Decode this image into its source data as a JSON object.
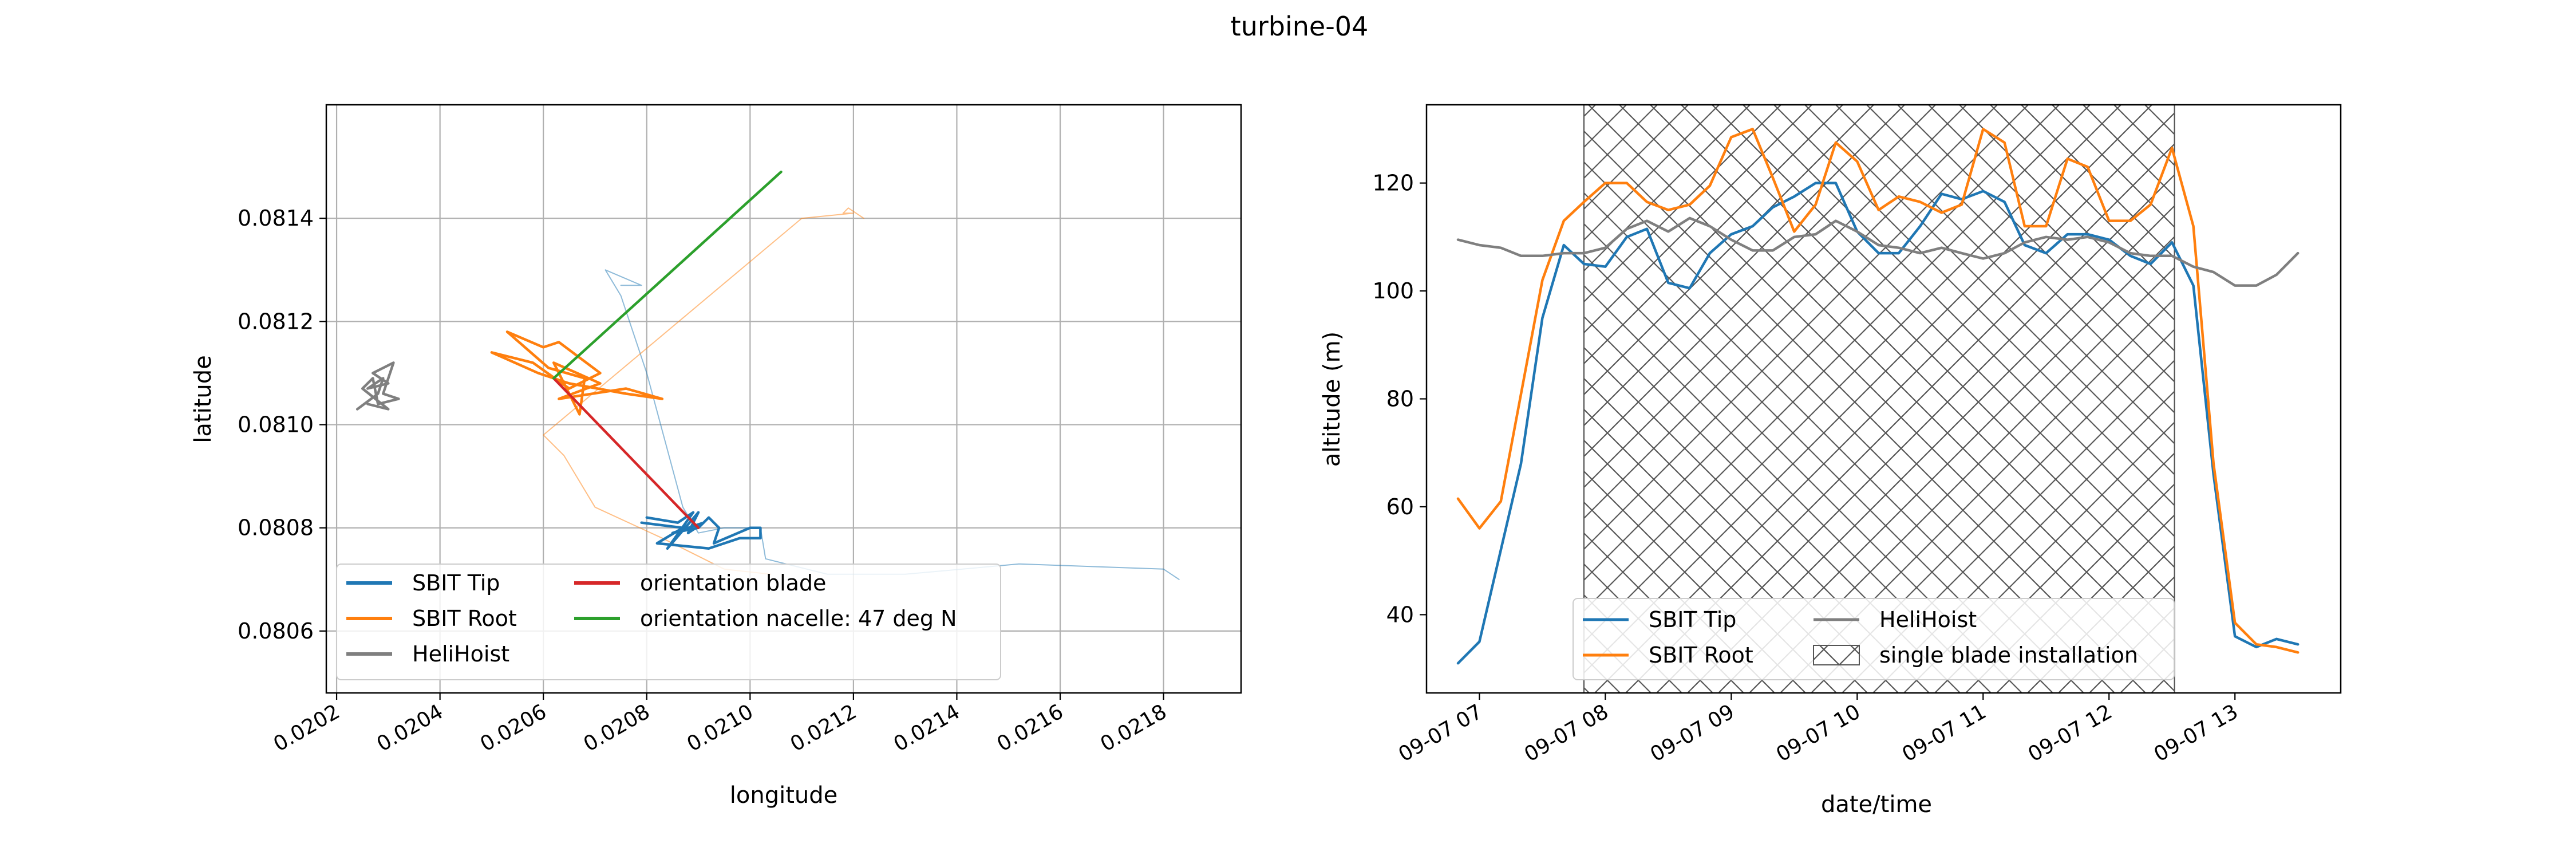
{
  "figure": {
    "suptitle": "turbine-04"
  },
  "colors": {
    "tip": "#1f77b4",
    "root": "#ff7f0e",
    "hoist": "#7f7f7f",
    "blade": "#d62728",
    "nacelle": "#2ca02c",
    "grid": "#b0b0b0"
  },
  "chart_data": [
    {
      "type": "line",
      "title": "",
      "xlabel": "longitude",
      "ylabel": "latitude",
      "xlim": [
        0.02018,
        0.02195
      ],
      "ylim": [
        0.08048,
        0.08162
      ],
      "xticks": [
        0.0202,
        0.0204,
        0.0206,
        0.0208,
        0.021,
        0.0212,
        0.0214,
        0.0216,
        0.0218
      ],
      "xtick_labels": [
        "0.0202",
        "0.0204",
        "0.0206",
        "0.0208",
        "0.0210",
        "0.0212",
        "0.0214",
        "0.0216",
        "0.0218"
      ],
      "yticks": [
        0.0806,
        0.0808,
        0.081,
        0.0812,
        0.0814
      ],
      "ytick_labels": [
        "0.0806",
        "0.0808",
        "0.0810",
        "0.0812",
        "0.0814"
      ],
      "grid": true,
      "legend_position": "lower-left",
      "legend": [
        {
          "label": "SBIT Tip",
          "key": "tip"
        },
        {
          "label": "SBIT Root",
          "key": "root"
        },
        {
          "label": "HeliHoist",
          "key": "hoist"
        },
        {
          "label": "orientation blade",
          "key": "blade"
        },
        {
          "label": "orientation nacelle: 47 deg N",
          "key": "nacelle"
        }
      ],
      "series": [
        {
          "key": "tip_light",
          "color": "tip",
          "alpha": 0.5,
          "width": 2,
          "x": [
            0.02183,
            0.0218,
            0.02152,
            0.0213,
            0.02115,
            0.02103,
            0.02102,
            0.02095,
            0.0209,
            0.02087,
            0.0208,
            0.02075,
            0.02072,
            0.02079,
            0.02075
          ],
          "y": [
            0.0807,
            0.08072,
            0.08073,
            0.08071,
            0.08071,
            0.08074,
            0.0808,
            0.0808,
            0.08079,
            0.08084,
            0.0811,
            0.08125,
            0.0813,
            0.08127,
            0.08127
          ]
        },
        {
          "key": "root_light",
          "color": "root",
          "alpha": 0.5,
          "width": 2,
          "x": [
            0.02122,
            0.02119,
            0.02118,
            0.0212,
            0.0211,
            0.0206,
            0.02064,
            0.0207,
            0.02083,
            0.02095,
            0.02104
          ],
          "y": [
            0.0814,
            0.08142,
            0.08141,
            0.08141,
            0.0814,
            0.08098,
            0.08094,
            0.08084,
            0.08078,
            0.08072,
            0.08071
          ]
        },
        {
          "key": "tip_bold",
          "color": "tip",
          "alpha": 1,
          "width": 4.5,
          "x": [
            0.0208,
            0.02086,
            0.02089,
            0.02084,
            0.0209,
            0.02088,
            0.02091,
            0.02085,
            0.0209,
            0.02092,
            0.02094,
            0.02093,
            0.021,
            0.02102,
            0.02102,
            0.02098,
            0.02092,
            0.02082,
            0.02087,
            0.02079
          ],
          "y": [
            0.08082,
            0.08081,
            0.08083,
            0.08076,
            0.08083,
            0.08079,
            0.08081,
            0.08079,
            0.0808,
            0.08082,
            0.0808,
            0.08077,
            0.0808,
            0.0808,
            0.08078,
            0.08078,
            0.08076,
            0.08077,
            0.0808,
            0.08081
          ]
        },
        {
          "key": "root_bold",
          "color": "root",
          "alpha": 1,
          "width": 4.5,
          "x": [
            0.0205,
            0.02058,
            0.02065,
            0.02071,
            0.02063,
            0.0206,
            0.02053,
            0.02061,
            0.02068,
            0.02067,
            0.02062,
            0.02071,
            0.02063,
            0.02076,
            0.02083,
            0.02076,
            0.02065,
            0.02059,
            0.0205
          ],
          "y": [
            0.08114,
            0.08112,
            0.08107,
            0.0811,
            0.08116,
            0.08115,
            0.08118,
            0.08111,
            0.08109,
            0.08102,
            0.08112,
            0.08108,
            0.08105,
            0.08107,
            0.08105,
            0.08106,
            0.08108,
            0.0811,
            0.08114
          ]
        },
        {
          "key": "hoist",
          "color": "hoist",
          "alpha": 1,
          "width": 4.5,
          "x": [
            0.02024,
            0.02028,
            0.02029,
            0.02026,
            0.0203,
            0.02027,
            0.02031,
            0.02029,
            0.02032,
            0.02028,
            0.02027,
            0.02025,
            0.0203,
            0.02026
          ],
          "y": [
            0.08103,
            0.08106,
            0.08109,
            0.08107,
            0.08108,
            0.0811,
            0.08112,
            0.08106,
            0.08105,
            0.08104,
            0.08109,
            0.08107,
            0.08103,
            0.08104
          ],
          "hidden_in_output": false
        },
        {
          "key": "blade",
          "color": "blade",
          "alpha": 1,
          "width": 4.5,
          "x": [
            0.02062,
            0.0209
          ],
          "y": [
            0.08109,
            0.0808
          ]
        },
        {
          "key": "nacelle",
          "color": "nacelle",
          "alpha": 1,
          "width": 4.5,
          "x": [
            0.02062,
            0.02106
          ],
          "y": [
            0.08109,
            0.08149
          ]
        }
      ]
    },
    {
      "type": "line",
      "title": "",
      "xlabel": "date/time",
      "ylabel": "altitude (m)",
      "x_units": "hours since 09-07 00:00",
      "xlim": [
        6.58,
        13.84
      ],
      "ylim": [
        25.5,
        134.5
      ],
      "xticks": [
        7,
        8,
        9,
        10,
        11,
        12,
        13
      ],
      "xtick_labels": [
        "09-07 07",
        "09-07 08",
        "09-07 09",
        "09-07 10",
        "09-07 11",
        "09-07 12",
        "09-07 13"
      ],
      "yticks": [
        40,
        60,
        80,
        100,
        120
      ],
      "ytick_labels": [
        "40",
        "60",
        "80",
        "100",
        "120"
      ],
      "grid": false,
      "legend_position": "lower-center",
      "legend": [
        {
          "label": "SBIT Tip",
          "key": "tip"
        },
        {
          "label": "SBIT Root",
          "key": "root"
        },
        {
          "label": "HeliHoist",
          "key": "hoist"
        },
        {
          "label": "single blade installation",
          "key": "span"
        }
      ],
      "span": {
        "label": "single blade installation",
        "x0": 7.83,
        "x1": 12.52
      },
      "series": [
        {
          "name": "SBIT Tip",
          "color": "tip",
          "x": [
            6.83,
            7.0,
            7.33,
            7.5,
            7.67,
            7.83,
            8.0,
            8.17,
            8.33,
            8.5,
            8.67,
            8.83,
            9.0,
            9.17,
            9.33,
            9.5,
            9.67,
            9.83,
            10.0,
            10.17,
            10.33,
            10.5,
            10.67,
            10.83,
            11.0,
            11.17,
            11.33,
            11.5,
            11.67,
            11.83,
            12.0,
            12.17,
            12.33,
            12.5,
            12.67,
            12.83,
            13.0,
            13.17,
            13.33,
            13.5
          ],
          "y": [
            31,
            35,
            68,
            95,
            108.5,
            105,
            104.5,
            110,
            111.5,
            101.5,
            100.5,
            107,
            110.5,
            112,
            115.5,
            117.5,
            120,
            120,
            111,
            107,
            107,
            112,
            118,
            117,
            118.5,
            116.5,
            108.5,
            107,
            110.5,
            110.5,
            109.5,
            106.5,
            105,
            109,
            101,
            66,
            36,
            34,
            35.5,
            34.5
          ]
        },
        {
          "name": "SBIT Root",
          "color": "root",
          "x": [
            6.83,
            7.0,
            7.17,
            7.5,
            7.67,
            7.83,
            8.0,
            8.17,
            8.33,
            8.5,
            8.67,
            8.83,
            9.0,
            9.17,
            9.33,
            9.5,
            9.67,
            9.83,
            10.0,
            10.17,
            10.33,
            10.5,
            10.67,
            10.83,
            11.0,
            11.17,
            11.33,
            11.5,
            11.67,
            11.83,
            12.0,
            12.17,
            12.33,
            12.5,
            12.67,
            12.83,
            13.0,
            13.17,
            13.33,
            13.5
          ],
          "y": [
            61.5,
            56,
            61,
            102,
            113,
            116.5,
            120,
            120,
            116.5,
            115,
            116,
            119.5,
            128.5,
            130,
            121,
            111,
            116,
            127.5,
            124,
            115,
            117.5,
            116.5,
            114.5,
            116,
            130,
            127.5,
            112,
            112,
            124.5,
            123,
            113,
            113,
            116,
            126.5,
            112,
            68,
            38.5,
            34.5,
            34,
            33
          ]
        },
        {
          "name": "HeliHoist",
          "color": "hoist",
          "x": [
            6.83,
            7.0,
            7.17,
            7.33,
            7.5,
            7.67,
            7.83,
            8.0,
            8.17,
            8.33,
            8.5,
            8.67,
            8.83,
            9.0,
            9.17,
            9.33,
            9.5,
            9.67,
            9.83,
            10.0,
            10.17,
            10.33,
            10.5,
            10.67,
            10.83,
            11.0,
            11.17,
            11.33,
            11.5,
            11.67,
            11.83,
            12.0,
            12.17,
            12.33,
            12.5,
            12.67,
            12.83,
            13.0,
            13.17,
            13.33,
            13.5
          ],
          "y": [
            109.5,
            108.5,
            108,
            106.5,
            106.5,
            107,
            107,
            108,
            111.5,
            113,
            111,
            113.5,
            112,
            109.5,
            107.5,
            107.5,
            110,
            110.5,
            113,
            111,
            108.5,
            108,
            107,
            108,
            107,
            106,
            107,
            109,
            110,
            109.5,
            110,
            109,
            107,
            106.5,
            106.5,
            104.5,
            103.5,
            101,
            101,
            103,
            107
          ]
        }
      ]
    }
  ]
}
